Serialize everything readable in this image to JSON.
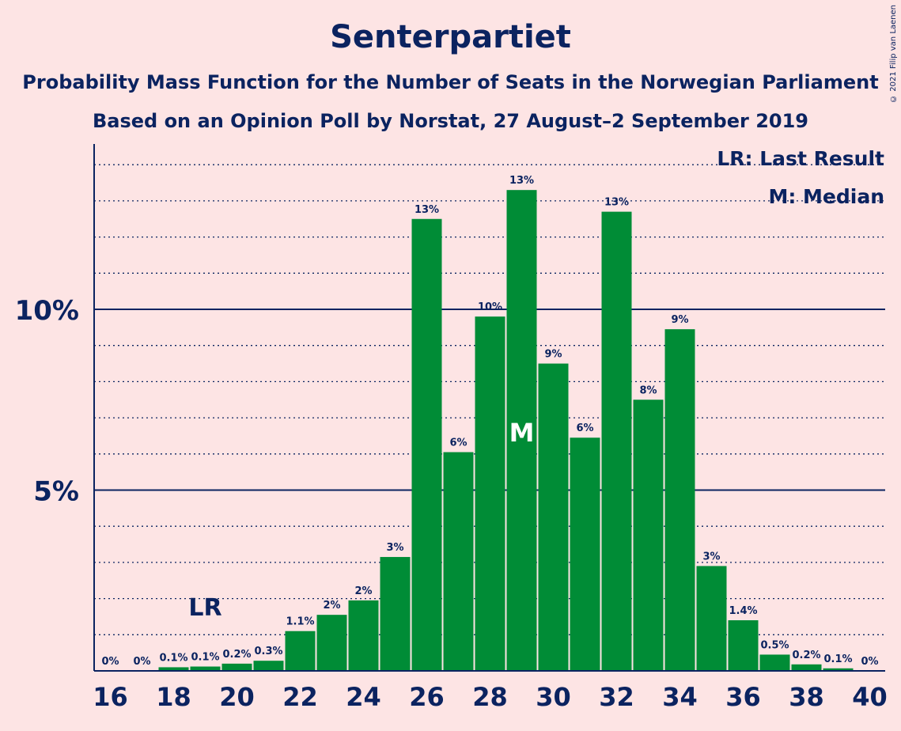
{
  "header": {
    "title": "Senterpartiet",
    "subtitle_1": "Probability Mass Function for the Number of Seats in the Norwegian Parliament",
    "subtitle_2": "Based on an Opinion Poll by Norstat, 27 August–2 September 2019",
    "copyright": "© 2021 Filip van Laenen"
  },
  "legend": {
    "last_result": "LR: Last Result",
    "median": "M: Median"
  },
  "colors": {
    "background": "#fde4e4",
    "bar": "#008c36",
    "text": "#0b2360"
  },
  "chart_data": {
    "type": "bar",
    "title": "Senterpartiet",
    "xlabel": "",
    "ylabel": "",
    "x": [
      16,
      17,
      18,
      19,
      20,
      21,
      22,
      23,
      24,
      25,
      26,
      27,
      28,
      29,
      30,
      31,
      32,
      33,
      34,
      35,
      36,
      37,
      38,
      39,
      40
    ],
    "values": [
      0,
      0,
      0.1,
      0.12,
      0.2,
      0.28,
      1.1,
      1.55,
      1.95,
      3.15,
      12.5,
      6.05,
      9.8,
      13.3,
      8.5,
      6.45,
      12.7,
      7.5,
      9.45,
      2.9,
      1.4,
      0.45,
      0.18,
      0.07,
      0
    ],
    "labels": [
      "0%",
      "0%",
      "0.1%",
      "0.1%",
      "0.2%",
      "0.3%",
      "1.1%",
      "2%",
      "2%",
      "3%",
      "13%",
      "6%",
      "10%",
      "13%",
      "9%",
      "6%",
      "13%",
      "8%",
      "9%",
      "3%",
      "1.4%",
      "0.5%",
      "0.2%",
      "0.1%",
      "0%"
    ],
    "x_ticks": [
      16,
      18,
      20,
      22,
      24,
      26,
      28,
      30,
      32,
      34,
      36,
      38,
      40
    ],
    "x_tick_labels": [
      "16",
      "18",
      "20",
      "22",
      "24",
      "26",
      "28",
      "30",
      "32",
      "34",
      "36",
      "38",
      "40"
    ],
    "y_ticks": [
      5,
      10
    ],
    "y_tick_labels": [
      "5%",
      "10%"
    ],
    "ylim": [
      0,
      14.5
    ],
    "minor_grid_step": 1,
    "last_result_seat": 19,
    "last_result_label": "LR",
    "median_seat": 29,
    "median_label": "M"
  }
}
